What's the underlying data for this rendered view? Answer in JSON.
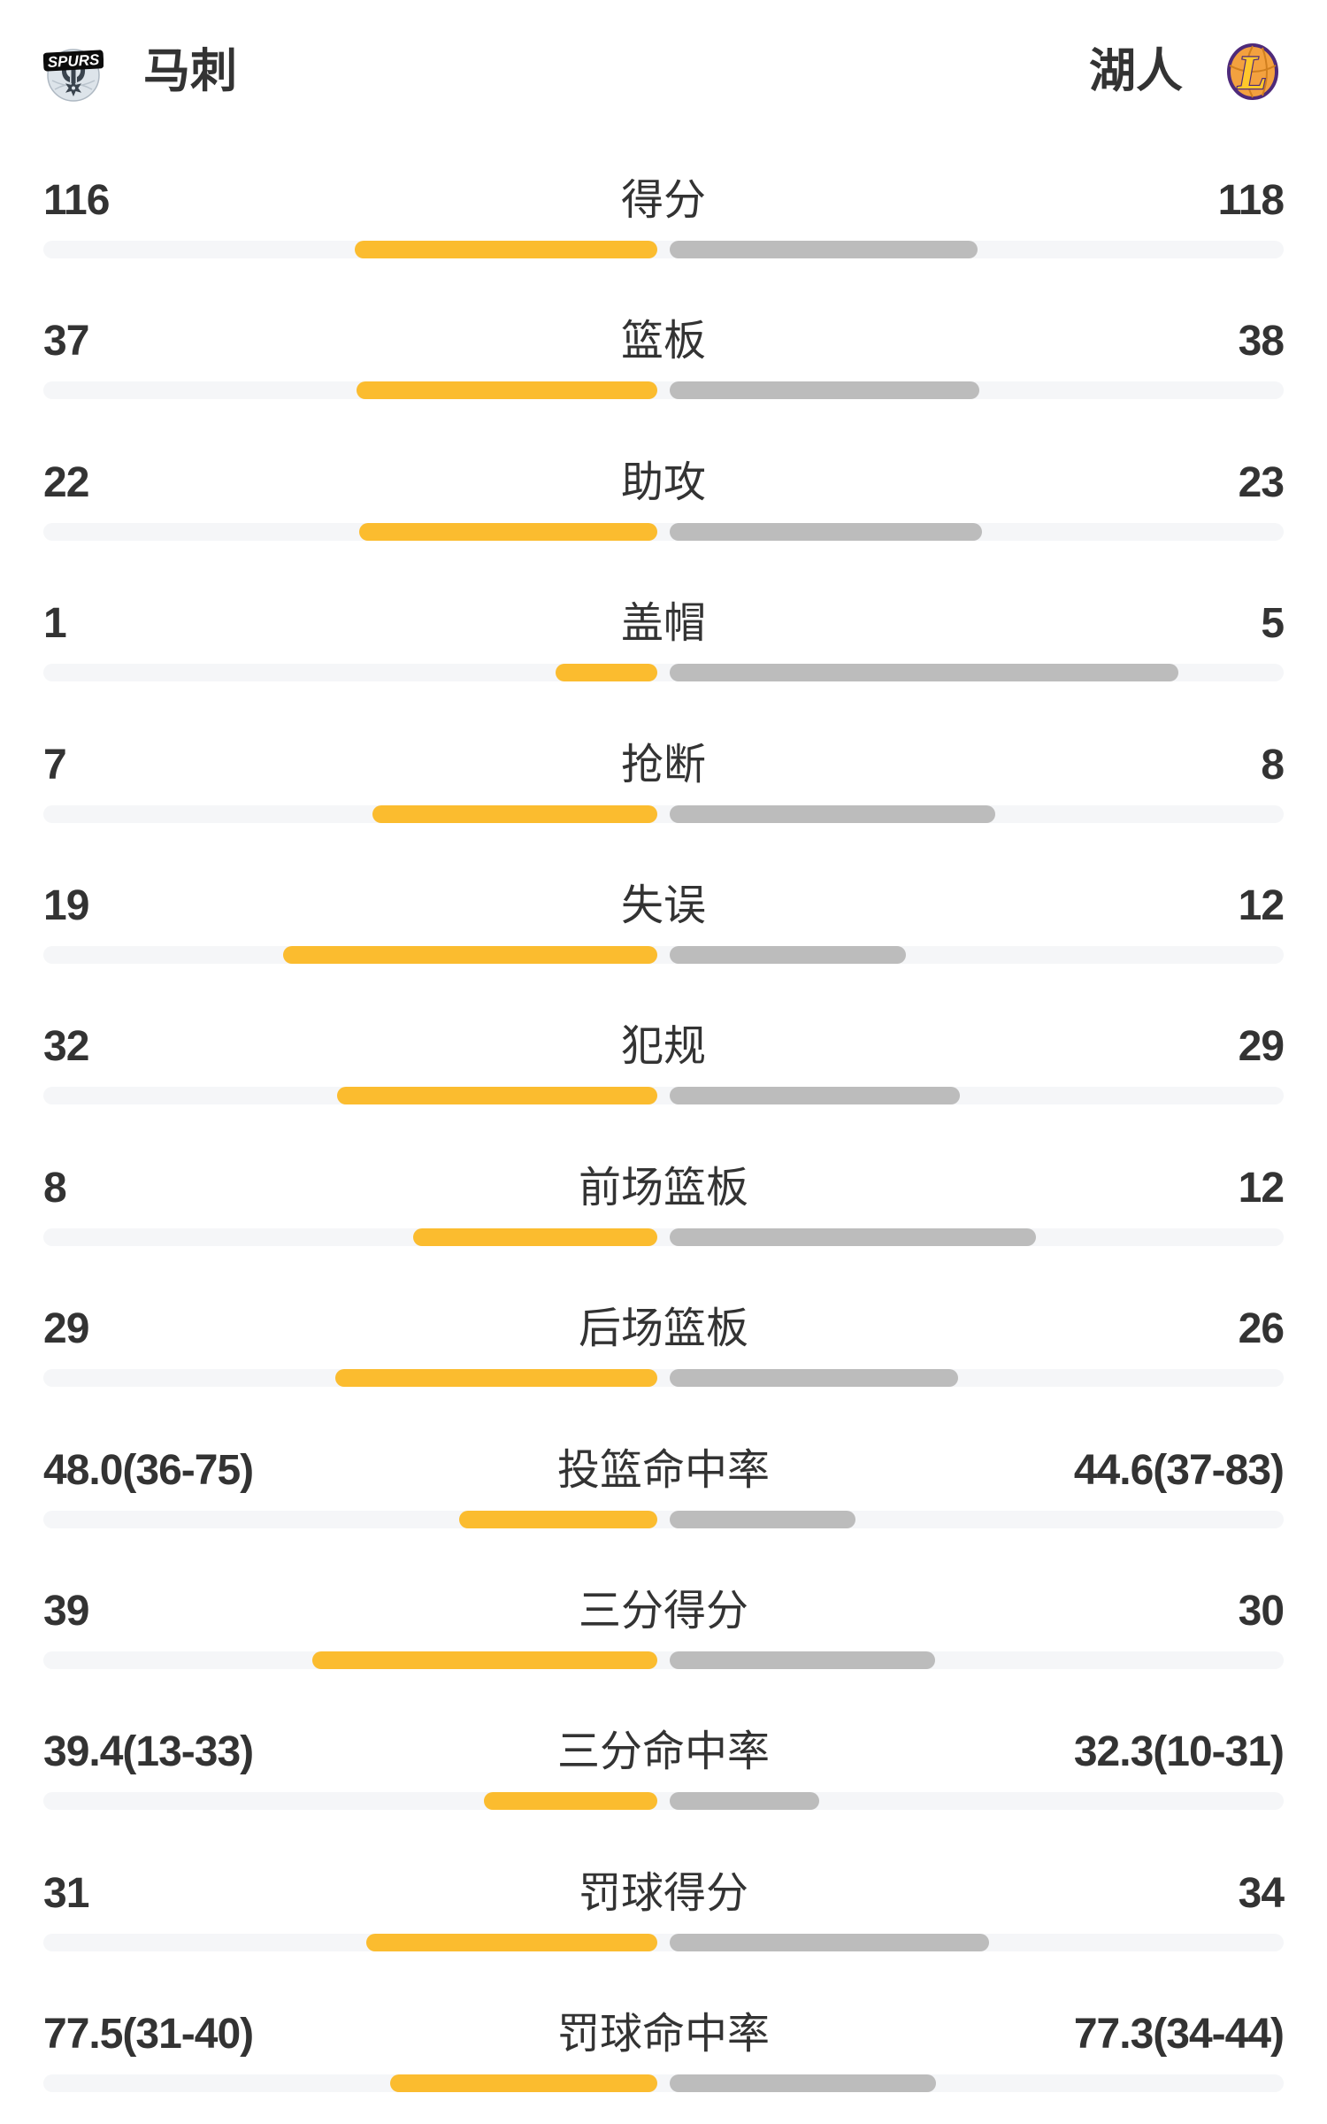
{
  "header": {
    "left_team": {
      "name": "马刺",
      "logo_text": "SPURS"
    },
    "right_team": {
      "name": "湖人",
      "logo_letter": "L"
    }
  },
  "colors": {
    "left_bar": "#FBBC2F",
    "right_bar": "#BCBCBC",
    "track": "#F5F6F8",
    "text": "#333333",
    "spurs_silver": "#DDE4EA",
    "spurs_black": "#0C0C0C",
    "lakers_gold": "#F3A13F",
    "lakers_purple": "#4E2A7A",
    "lakers_letter_gold": "#FFC72C"
  },
  "chart_data": {
    "type": "bar",
    "layout": "mirrored horizontal comparison bars, anchored at center, left series grows leftward, right series grows rightward",
    "teams": [
      "马刺",
      "湖人"
    ],
    "rows": [
      {
        "label": "得分",
        "left": "116",
        "right": "118",
        "left_value": 116,
        "right_value": 118,
        "left_bar_frac": 0.488,
        "right_bar_frac": 0.496
      },
      {
        "label": "篮板",
        "left": "37",
        "right": "38",
        "left_value": 37,
        "right_value": 38,
        "left_bar_frac": 0.485,
        "right_bar_frac": 0.499
      },
      {
        "label": "助攻",
        "left": "22",
        "right": "23",
        "left_value": 22,
        "right_value": 23,
        "left_bar_frac": 0.481,
        "right_bar_frac": 0.504
      },
      {
        "label": "盖帽",
        "left": "1",
        "right": "5",
        "left_value": 1,
        "right_value": 5,
        "left_bar_frac": 0.164,
        "right_bar_frac": 0.82
      },
      {
        "label": "抢断",
        "left": "7",
        "right": "8",
        "left_value": 7,
        "right_value": 8,
        "left_bar_frac": 0.459,
        "right_bar_frac": 0.525
      },
      {
        "label": "失误",
        "left": "19",
        "right": "12",
        "left_value": 19,
        "right_value": 12,
        "left_bar_frac": 0.603,
        "right_bar_frac": 0.381
      },
      {
        "label": "犯规",
        "left": "32",
        "right": "29",
        "left_value": 32,
        "right_value": 29,
        "left_bar_frac": 0.516,
        "right_bar_frac": 0.468
      },
      {
        "label": "前场篮板",
        "left": "8",
        "right": "12",
        "left_value": 8,
        "right_value": 12,
        "left_bar_frac": 0.394,
        "right_bar_frac": 0.591
      },
      {
        "label": "后场篮板",
        "left": "29",
        "right": "26",
        "left_value": 29,
        "right_value": 26,
        "left_bar_frac": 0.519,
        "right_bar_frac": 0.465
      },
      {
        "label": "投篮命中率",
        "left": "48.0(36-75)",
        "right": "44.6(37-83)",
        "left_value": 48.0,
        "right_value": 44.6,
        "left_made": 36,
        "left_attempts": 75,
        "right_made": 37,
        "right_attempts": 83,
        "left_bar_frac": 0.32,
        "right_bar_frac": 0.3
      },
      {
        "label": "三分得分",
        "left": "39",
        "right": "30",
        "left_value": 39,
        "right_value": 30,
        "left_bar_frac": 0.556,
        "right_bar_frac": 0.428
      },
      {
        "label": "三分命中率",
        "left": "39.4(13-33)",
        "right": "32.3(10-31)",
        "left_value": 39.4,
        "right_value": 32.3,
        "left_made": 13,
        "left_attempts": 33,
        "right_made": 10,
        "right_attempts": 31,
        "left_bar_frac": 0.28,
        "right_bar_frac": 0.241
      },
      {
        "label": "罚球得分",
        "left": "31",
        "right": "34",
        "left_value": 31,
        "right_value": 34,
        "left_bar_frac": 0.469,
        "right_bar_frac": 0.515
      },
      {
        "label": "罚球命中率",
        "left": "77.5(31-40)",
        "right": "77.3(34-44)",
        "left_value": 77.5,
        "right_value": 77.3,
        "left_made": 31,
        "left_attempts": 40,
        "right_made": 34,
        "right_attempts": 44,
        "left_bar_frac": 0.431,
        "right_bar_frac": 0.429
      }
    ]
  }
}
